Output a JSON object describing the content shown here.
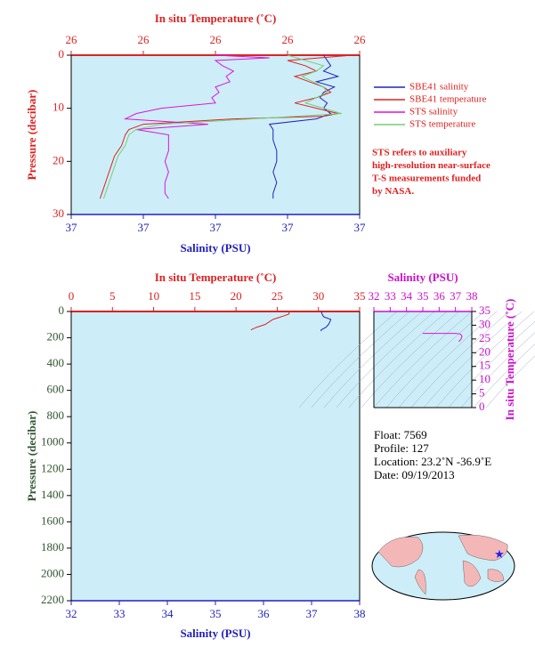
{
  "chart_data": [
    {
      "type": "profile",
      "y_inverted": true,
      "x2label": "In situ Temperature (˚C)",
      "xlabel": "Salinity (PSU)",
      "ylabel": "Pressure (decibar)",
      "xlim": [
        36.6,
        37.4
      ],
      "xticks": [
        {
          "value": 36.6,
          "label": "37"
        },
        {
          "value": 36.8,
          "label": "37"
        },
        {
          "value": 37.0,
          "label": "37"
        },
        {
          "value": 37.2,
          "label": "37"
        },
        {
          "value": 37.4,
          "label": "37"
        }
      ],
      "x2lim": [
        25.6,
        26.4
      ],
      "x2ticks": [
        {
          "value": 25.6,
          "label": "26"
        },
        {
          "value": 25.8,
          "label": "26"
        },
        {
          "value": 26.0,
          "label": "26"
        },
        {
          "value": 26.2,
          "label": "26"
        },
        {
          "value": 26.4,
          "label": "26"
        }
      ],
      "ylim": [
        0,
        30
      ],
      "yticks": [
        0,
        10,
        20,
        30
      ],
      "series": [
        {
          "name": "SBE41 salinity",
          "color": "#2222bb",
          "axis": "x",
          "pressure": [
            0,
            2,
            3,
            4,
            5,
            6,
            7,
            8,
            9,
            10,
            11,
            12,
            13,
            14,
            16,
            18,
            20,
            22,
            24,
            26,
            27
          ],
          "values": [
            37.3,
            37.32,
            37.3,
            37.34,
            37.28,
            37.33,
            37.3,
            37.29,
            37.31,
            37.3,
            37.32,
            37.28,
            37.15,
            37.16,
            37.16,
            37.17,
            37.17,
            37.16,
            37.17,
            37.16,
            37.16
          ]
        },
        {
          "name": "SBE41 temperature",
          "color": "#dd2222",
          "axis": "x2",
          "pressure": [
            0,
            1,
            2,
            3,
            4,
            5,
            6,
            7,
            8,
            9,
            10,
            11,
            11.5,
            12,
            13,
            14,
            15,
            17,
            19,
            21,
            23,
            25,
            27
          ],
          "values": [
            26.38,
            26.2,
            26.25,
            26.28,
            26.22,
            26.26,
            26.3,
            26.32,
            26.28,
            26.22,
            26.28,
            26.34,
            26.3,
            26.05,
            25.8,
            25.76,
            25.75,
            25.74,
            25.72,
            25.71,
            25.7,
            25.69,
            25.68
          ]
        },
        {
          "name": "STS salinity",
          "color": "#dd11dd",
          "axis": "x",
          "pressure": [
            0,
            0.5,
            1,
            2,
            3,
            4,
            5,
            6,
            7,
            8,
            9,
            10,
            11,
            12,
            13,
            14,
            15,
            16,
            18,
            20,
            22,
            24,
            26,
            27
          ],
          "values": [
            37.0,
            37.15,
            37.0,
            37.02,
            37.05,
            37.03,
            37.04,
            37.0,
            37.01,
            36.99,
            37.0,
            36.85,
            36.78,
            36.75,
            36.98,
            36.78,
            36.87,
            36.87,
            36.87,
            36.86,
            36.87,
            36.86,
            36.86,
            36.87
          ]
        },
        {
          "name": "STS temperature",
          "color": "#77cc77",
          "axis": "x2",
          "pressure": [
            0,
            1,
            2,
            3,
            4,
            5,
            6,
            7,
            8,
            9,
            10,
            11,
            12,
            13,
            14,
            15,
            17,
            19,
            21,
            23,
            25,
            27
          ],
          "values": [
            26.2,
            26.25,
            26.3,
            26.28,
            26.24,
            26.27,
            26.3,
            26.31,
            26.28,
            26.25,
            26.3,
            26.35,
            26.1,
            25.85,
            25.78,
            25.76,
            25.75,
            25.73,
            25.72,
            25.71,
            25.7,
            25.69
          ]
        }
      ]
    },
    {
      "type": "profile",
      "y_inverted": true,
      "x2label": "In situ Temperature (˚C)",
      "xlabel": "Salinity (PSU)",
      "ylabel": "Pressure (decibar)",
      "xlim": [
        32,
        38
      ],
      "xticks": [
        32,
        33,
        34,
        35,
        36,
        37,
        38
      ],
      "x2lim": [
        0,
        35
      ],
      "x2ticks": [
        0,
        5,
        10,
        15,
        20,
        25,
        30,
        35
      ],
      "ylim": [
        0,
        2200
      ],
      "yticks": [
        0,
        200,
        400,
        600,
        800,
        1000,
        1200,
        1400,
        1600,
        1800,
        2000,
        2200
      ],
      "series": [
        {
          "color": "#dd2222",
          "axis": "x2",
          "pressure": [
            0,
            20,
            40,
            60,
            80,
            100,
            120,
            140
          ],
          "values": [
            26.5,
            26.4,
            25.5,
            24.5,
            24.0,
            23.5,
            22.5,
            21.8
          ]
        },
        {
          "color": "#2222bb",
          "axis": "x",
          "pressure": [
            0,
            20,
            40,
            60,
            80,
            100,
            120,
            140,
            150
          ],
          "values": [
            37.2,
            37.22,
            37.25,
            37.4,
            37.38,
            37.35,
            37.3,
            37.2,
            37.2
          ]
        }
      ]
    },
    {
      "type": "ts",
      "y_inverted": false,
      "xlabel": "Salinity (PSU)",
      "ylabel": "In situ Temperature (˚C)",
      "xlim": [
        32,
        38
      ],
      "xticks": [
        32,
        33,
        34,
        35,
        36,
        37,
        38
      ],
      "ylim": [
        0,
        35
      ],
      "yticks": [
        0,
        5,
        10,
        15,
        20,
        25,
        30,
        35
      ],
      "series": [
        {
          "color": "#dd11dd",
          "x": [
            35.0,
            36,
            37,
            37.3,
            37.4,
            37.35,
            37.2
          ],
          "values": [
            27,
            27,
            27,
            26.8,
            26,
            25,
            24
          ]
        }
      ]
    }
  ],
  "note": [
    "STS refers to auxiliary",
    "high-resolution near-surface",
    "T-S measurements funded",
    "by NASA."
  ],
  "info": [
    "Float:  7569",
    "Profile:  127",
    "Location:  23.2˚N  -36.9˚E",
    "Date:  09/19/2013"
  ]
}
